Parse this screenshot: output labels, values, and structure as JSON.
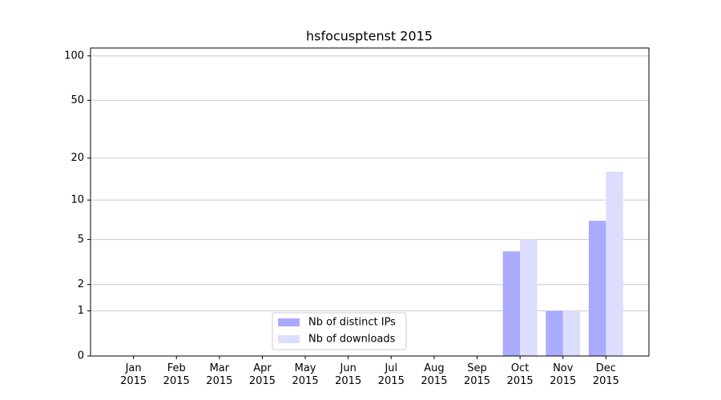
{
  "chart_data": {
    "type": "bar",
    "title": "hsfocusptenst 2015",
    "categories": [
      "Jan 2015",
      "Feb 2015",
      "Mar 2015",
      "Apr 2015",
      "May 2015",
      "Jun 2015",
      "Jul 2015",
      "Aug 2015",
      "Sep 2015",
      "Oct 2015",
      "Nov 2015",
      "Dec 2015"
    ],
    "series": [
      {
        "name": "Nb of distinct IPs",
        "color": "#aaaaff",
        "values": [
          0,
          0,
          0,
          0,
          0,
          0,
          0,
          0,
          0,
          4,
          1,
          7
        ]
      },
      {
        "name": "Nb of downloads",
        "color": "#ddddff",
        "values": [
          0,
          0,
          0,
          0,
          0,
          0,
          0,
          0,
          0,
          5,
          1,
          16
        ]
      }
    ],
    "yscale": "log1p",
    "ylim": [
      0,
      113
    ],
    "yticks": [
      0,
      1,
      2,
      5,
      10,
      20,
      50,
      100
    ],
    "grid": true,
    "legend": "lower center"
  }
}
